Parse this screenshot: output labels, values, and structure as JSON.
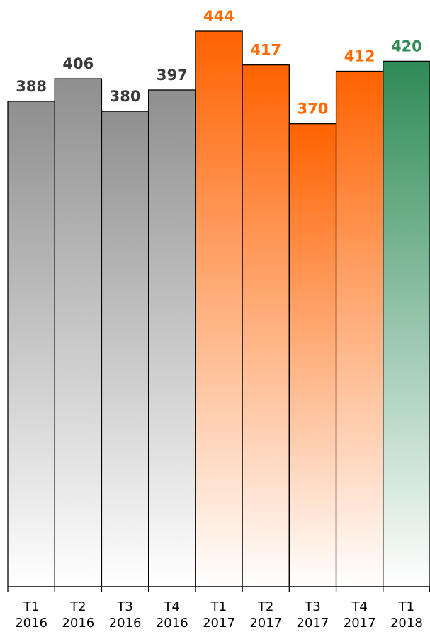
{
  "chart_data": {
    "type": "bar",
    "title": "",
    "xlabel": "",
    "ylabel": "",
    "ylim": [
      0,
      444
    ],
    "grid": false,
    "legend": "none",
    "categories": [
      [
        "T1",
        "2016"
      ],
      [
        "T2",
        "2016"
      ],
      [
        "T3",
        "2016"
      ],
      [
        "T4",
        "2016"
      ],
      [
        "T1",
        "2017"
      ],
      [
        "T2",
        "2017"
      ],
      [
        "T3",
        "2017"
      ],
      [
        "T4",
        "2017"
      ],
      [
        "T1",
        "2018"
      ]
    ],
    "values": [
      388,
      406,
      380,
      397,
      444,
      417,
      370,
      412,
      420
    ],
    "bar_colors": [
      "gray",
      "gray",
      "gray",
      "gray",
      "orange",
      "orange",
      "orange",
      "orange",
      "green"
    ],
    "palette": {
      "gray": {
        "top": "#8f8f8f",
        "bottom": "#ffffff",
        "label": "#3a3a3a"
      },
      "orange": {
        "top": "#ff6200",
        "bottom": "#ffffff",
        "label": "#ff6a00"
      },
      "green": {
        "top": "#2e8b57",
        "bottom": "#ffffff",
        "label": "#2e8b57"
      }
    }
  }
}
